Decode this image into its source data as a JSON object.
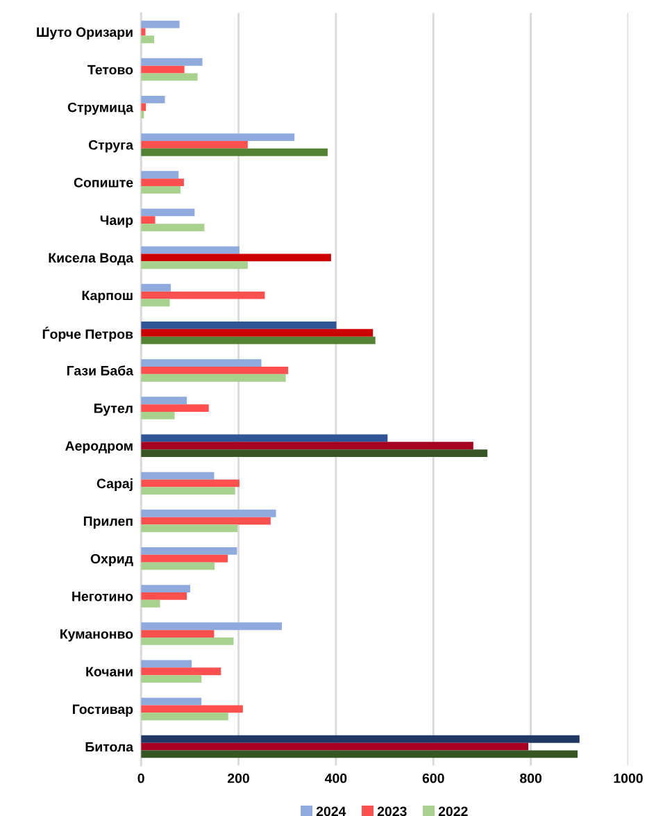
{
  "chart_data": {
    "type": "bar",
    "orientation": "horizontal",
    "categories": [
      "Шуто Оризари",
      "Тетово",
      "Струмица",
      "Струга",
      "Сопиште",
      "Чаир",
      "Кисела Вода",
      "Карпош",
      "Ѓорче Петров",
      "Гази Баба",
      "Бутел",
      "Аеродром",
      "Сарај",
      "Прилеп",
      "Охрид",
      "Неготино",
      "Куманонво",
      "Кочани",
      "Гостивар",
      "Битола"
    ],
    "series": [
      {
        "name": "2024",
        "color": "#8faadc",
        "values": [
          79,
          126,
          49,
          315,
          77,
          110,
          202,
          61,
          401,
          247,
          94,
          506,
          150,
          277,
          197,
          101,
          289,
          104,
          124,
          900
        ],
        "colors": [
          "#8faadc",
          "#8faadc",
          "#8faadc",
          "#8faadc",
          "#8faadc",
          "#8faadc",
          "#8faadc",
          "#8faadc",
          "#2f5597",
          "#8faadc",
          "#8faadc",
          "#2f5597",
          "#8faadc",
          "#8faadc",
          "#8faadc",
          "#8faadc",
          "#8faadc",
          "#8faadc",
          "#8faadc",
          "#203864"
        ]
      },
      {
        "name": "2023",
        "color": "#ff5050",
        "values": [
          9,
          89,
          10,
          219,
          88,
          29,
          390,
          254,
          476,
          302,
          139,
          682,
          202,
          266,
          178,
          94,
          150,
          164,
          209,
          795
        ],
        "colors": [
          "#ff5050",
          "#ff5050",
          "#ff5050",
          "#ff5050",
          "#ff5050",
          "#ff5050",
          "#cc0000",
          "#ff5050",
          "#cc0000",
          "#ff5050",
          "#ff5050",
          "#a50021",
          "#ff5050",
          "#ff5050",
          "#ff5050",
          "#ff5050",
          "#ff5050",
          "#ff5050",
          "#ff5050",
          "#a50021"
        ]
      },
      {
        "name": "2022",
        "color": "#a9d18e",
        "values": [
          27,
          116,
          6,
          383,
          81,
          130,
          219,
          59,
          481,
          297,
          69,
          711,
          193,
          198,
          151,
          39,
          190,
          124,
          179,
          896
        ],
        "colors": [
          "#a9d18e",
          "#a9d18e",
          "#a9d18e",
          "#548235",
          "#a9d18e",
          "#a9d18e",
          "#a9d18e",
          "#a9d18e",
          "#548235",
          "#a9d18e",
          "#a9d18e",
          "#375623",
          "#a9d18e",
          "#a9d18e",
          "#a9d18e",
          "#a9d18e",
          "#a9d18e",
          "#a9d18e",
          "#a9d18e",
          "#375623"
        ]
      }
    ],
    "xlim": [
      0,
      1000
    ],
    "xticks": [
      0,
      200,
      400,
      600,
      800,
      1000
    ],
    "grid": "x",
    "legend": "bottom"
  }
}
